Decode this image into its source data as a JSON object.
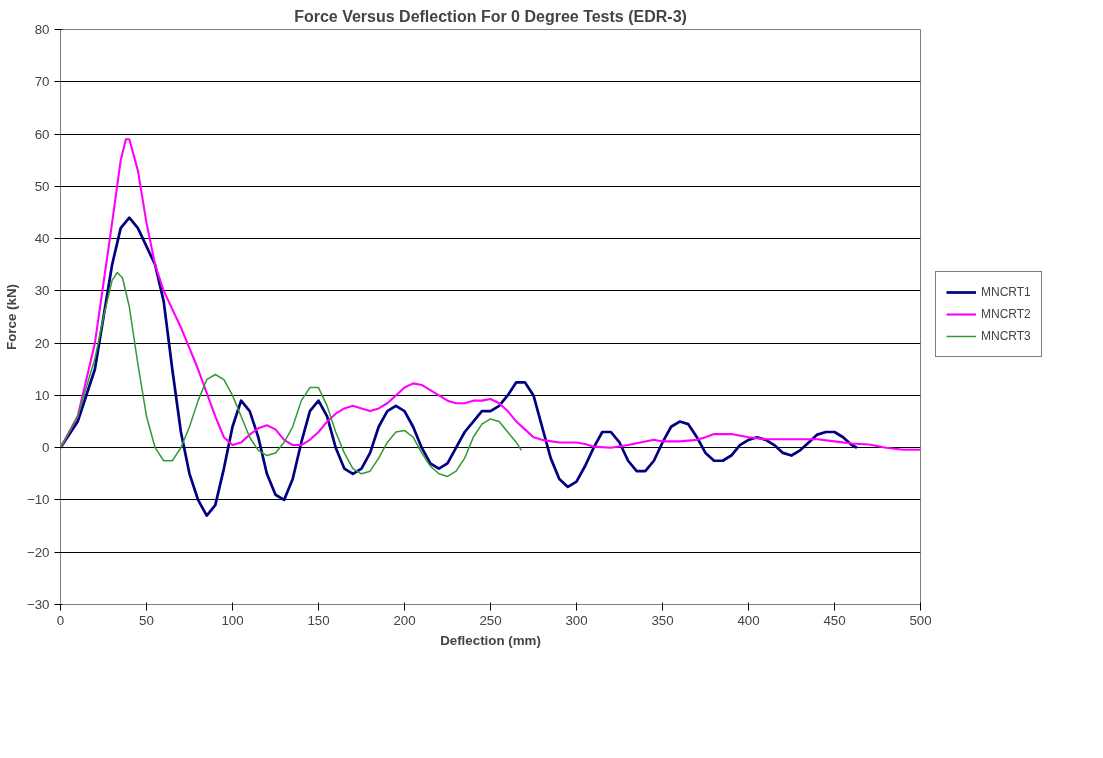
{
  "chart_data": {
    "type": "line",
    "title": "Force Versus Deflection For 0 Degree Tests (EDR-3)",
    "xlabel": "Deflection (mm)",
    "ylabel": "Force (kN)",
    "xlim": [
      0,
      500
    ],
    "xticks": [
      0,
      50,
      100,
      150,
      200,
      250,
      300,
      350,
      400,
      450,
      500
    ],
    "ylim": [
      -30,
      80
    ],
    "yticks": [
      -30,
      -20,
      -10,
      0,
      10,
      20,
      30,
      40,
      50,
      60,
      70,
      80
    ],
    "grid": "y",
    "legend": "right",
    "marker": "none",
    "line_style": "solid",
    "series": [
      {
        "name": "MNCRT1",
        "color": "#000080",
        "x": [
          0,
          10,
          20,
          30,
          35,
          40,
          45,
          55,
          60,
          65,
          70,
          75,
          80,
          85,
          90,
          95,
          100,
          105,
          110,
          115,
          120,
          125,
          130,
          135,
          140,
          145,
          150,
          155,
          160,
          165,
          170,
          175,
          180,
          185,
          190,
          195,
          200,
          205,
          210,
          215,
          220,
          225,
          230,
          235,
          240,
          245,
          250,
          255,
          260,
          265,
          270,
          275,
          280,
          285,
          290,
          295,
          300,
          305,
          310,
          315,
          320,
          325,
          330,
          335,
          340,
          345,
          350,
          355,
          360,
          365,
          370,
          375,
          380,
          385,
          390,
          395,
          400,
          405,
          410,
          415,
          420,
          425,
          430,
          435,
          440,
          445,
          450,
          455,
          460,
          463
        ],
        "values": [
          0,
          5,
          15,
          35,
          42,
          44,
          42,
          35,
          28,
          15,
          3,
          -5,
          -10,
          -13,
          -11,
          -4,
          4,
          9,
          7,
          2,
          -5,
          -9,
          -10,
          -6,
          1,
          7,
          9,
          6,
          0,
          -4,
          -5,
          -4,
          -1,
          4,
          7,
          8,
          7,
          4,
          0,
          -3,
          -4,
          -3,
          0,
          3,
          5,
          7,
          7,
          8,
          10,
          12.5,
          12.5,
          10,
          4,
          -2,
          -6,
          -7.5,
          -6.5,
          -3.5,
          0,
          3,
          3,
          1,
          -2.5,
          -4.5,
          -4.5,
          -2.5,
          1,
          4,
          5,
          4.5,
          2,
          -1,
          -2.5,
          -2.5,
          -1.5,
          0.5,
          1.5,
          2,
          1.5,
          0.5,
          -1,
          -1.5,
          -0.5,
          1,
          2.5,
          3,
          3,
          2,
          0.5,
          0
        ]
      },
      {
        "name": "MNCRT2",
        "color": "#ff00ff",
        "x": [
          0,
          10,
          20,
          30,
          35,
          38,
          40,
          45,
          50,
          55,
          60,
          70,
          80,
          90,
          95,
          100,
          105,
          110,
          115,
          120,
          125,
          130,
          135,
          140,
          145,
          150,
          155,
          160,
          165,
          170,
          175,
          180,
          185,
          190,
          195,
          200,
          205,
          210,
          215,
          220,
          225,
          230,
          235,
          240,
          245,
          250,
          255,
          260,
          265,
          270,
          275,
          280,
          290,
          300,
          305,
          310,
          320,
          330,
          340,
          345,
          350,
          360,
          370,
          375,
          380,
          390,
          400,
          410,
          430,
          440,
          450,
          460,
          470,
          480,
          490,
          500
        ],
        "values": [
          0,
          6,
          20,
          43,
          55,
          59,
          59,
          53,
          43,
          35,
          30,
          23,
          15,
          6,
          2,
          0.5,
          1,
          2.5,
          3.7,
          4.3,
          3.5,
          1.5,
          0.5,
          0.5,
          1.5,
          3,
          5,
          6.5,
          7.5,
          8,
          7.5,
          7,
          7.5,
          8.5,
          10,
          11.5,
          12.3,
          12,
          11,
          10,
          9,
          8.5,
          8.5,
          9,
          9,
          9.3,
          8.5,
          7,
          5,
          3.5,
          2,
          1.5,
          1,
          1,
          0.7,
          0.2,
          0,
          0.5,
          1.2,
          1.5,
          1.2,
          1.2,
          1.5,
          2,
          2.6,
          2.6,
          2,
          1.6,
          1.6,
          1.6,
          1.2,
          0.8,
          0.6,
          0,
          -0.4,
          -0.4
        ]
      },
      {
        "name": "MNCRT3",
        "color": "#339933",
        "x": [
          0,
          10,
          20,
          25,
          30,
          33,
          36,
          40,
          45,
          50,
          55,
          60,
          65,
          70,
          75,
          80,
          85,
          90,
          95,
          100,
          105,
          110,
          115,
          120,
          125,
          130,
          135,
          140,
          145,
          150,
          155,
          160,
          165,
          170,
          175,
          180,
          185,
          190,
          195,
          200,
          205,
          210,
          215,
          220,
          225,
          230,
          235,
          240,
          245,
          250,
          255,
          260,
          265,
          268
        ],
        "values": [
          0,
          6,
          17,
          25,
          32,
          33.5,
          32.5,
          27,
          16,
          6,
          0,
          -2.5,
          -2.5,
          0,
          4,
          9,
          13,
          14,
          13,
          10,
          6,
          2,
          -0.5,
          -1.5,
          -1,
          1,
          4,
          9,
          11.5,
          11.5,
          8,
          3,
          -1,
          -4,
          -5,
          -4.5,
          -2,
          1,
          3,
          3.3,
          2,
          -1,
          -3.5,
          -5,
          -5.5,
          -4.5,
          -2,
          2,
          4.5,
          5.5,
          5,
          3,
          1,
          -0.5
        ]
      }
    ]
  }
}
